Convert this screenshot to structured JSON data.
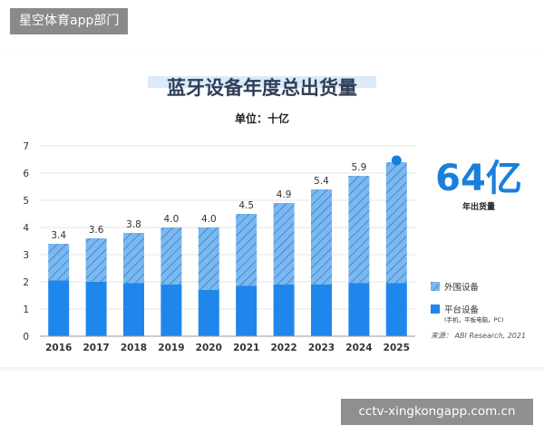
{
  "top_banner": "星空体育app部门",
  "bottom_banner": "cctv-xingkongapp.com.cn",
  "chart_data": {
    "type": "bar",
    "stacked": true,
    "title": "蓝牙设备年度总出货量",
    "subtitle": "单位：十亿",
    "categories": [
      "2016",
      "2017",
      "2018",
      "2019",
      "2020",
      "2021",
      "2022",
      "2023",
      "2024",
      "2025"
    ],
    "series": [
      {
        "name": "平台设备",
        "values": [
          2.05,
          2.0,
          1.95,
          1.9,
          1.7,
          1.85,
          1.9,
          1.9,
          1.95,
          1.95
        ],
        "color": "#1f86ec"
      },
      {
        "name": "外围设备",
        "values": [
          1.35,
          1.6,
          1.85,
          2.1,
          2.3,
          2.65,
          3.0,
          3.5,
          3.95,
          4.45
        ],
        "color": "#7ab8f1",
        "hatched": true
      }
    ],
    "totals_labels": [
      "3.4",
      "3.6",
      "3.8",
      "4.0",
      "4.0",
      "4.5",
      "4.9",
      "5.4",
      "5.9",
      ""
    ],
    "ylim": [
      0,
      7
    ],
    "yticks": [
      "0",
      "1",
      "2",
      "3",
      "4",
      "5",
      "6",
      "7"
    ],
    "grid": true,
    "legend_position": "right",
    "highlight": {
      "value": "64亿",
      "caption": "年出货量"
    },
    "legend": [
      {
        "label": "外围设备",
        "sub": ""
      },
      {
        "label": "平台设备",
        "sub": "(手机，平板电脑，PC)"
      }
    ],
    "source": "来源： ABI Research, 2021"
  }
}
